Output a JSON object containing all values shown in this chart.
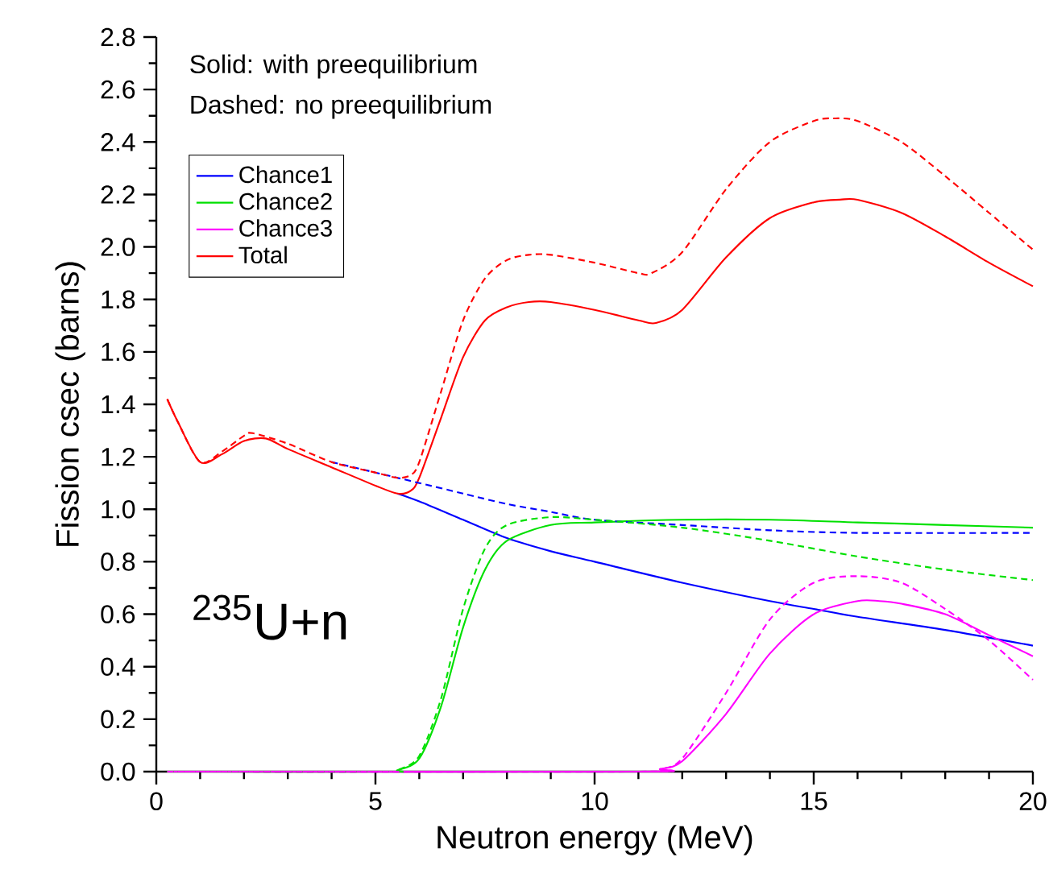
{
  "chart_data": {
    "type": "line",
    "xlabel": "Neutron energy (MeV)",
    "ylabel": "Fission csec (barns)",
    "annotations": [
      "Solid:  with preequilibrium",
      "Dashed:  no preequilibrium",
      "$^{235}$U+n"
    ],
    "xlim": [
      0,
      20
    ],
    "ylim": [
      0,
      2.8
    ],
    "xticks": [
      0,
      5,
      10,
      15,
      20
    ],
    "yticks": [
      {
        "value": 0,
        "label": "0.0"
      },
      {
        "value": 0.2,
        "label": "0.2"
      },
      {
        "value": 0.4,
        "label": "0.4"
      },
      {
        "value": 0.6,
        "label": "0.6"
      },
      {
        "value": 0.8,
        "label": "0.8"
      },
      {
        "value": 1.0,
        "label": "1.0"
      },
      {
        "value": 1.2,
        "label": "1.2"
      },
      {
        "value": 1.4,
        "label": "1.4"
      },
      {
        "value": 1.6,
        "label": "1.6"
      },
      {
        "value": 1.8,
        "label": "1.8"
      },
      {
        "value": 2.0,
        "label": "2.0"
      },
      {
        "value": 2.2,
        "label": "2.2"
      },
      {
        "value": 2.4,
        "label": "2.4"
      },
      {
        "value": 2.6,
        "label": "2.6"
      },
      {
        "value": 2.8,
        "label": "2.8"
      }
    ],
    "grid": false,
    "legend": "top left",
    "marker": "none",
    "series": [
      {
        "name": "Chance1",
        "color": "#0000ff",
        "line_style": "solid",
        "x": [
          5.5,
          6,
          7,
          8,
          9,
          10,
          12,
          14,
          15,
          16,
          18,
          20
        ],
        "values": [
          1.06,
          1.03,
          0.96,
          0.89,
          0.84,
          0.8,
          0.72,
          0.65,
          0.62,
          0.59,
          0.54,
          0.48
        ]
      },
      {
        "name": "Chance2",
        "color": "#00e000",
        "line_style": "solid",
        "x": [
          0.25,
          5.3,
          5.5,
          6,
          6.5,
          7,
          7.5,
          8,
          9,
          10,
          12,
          14,
          16,
          18,
          20
        ],
        "values": [
          0,
          0,
          0.005,
          0.05,
          0.25,
          0.55,
          0.77,
          0.88,
          0.94,
          0.95,
          0.96,
          0.96,
          0.95,
          0.94,
          0.93
        ]
      },
      {
        "name": "Chance3",
        "color": "#ff00ff",
        "line_style": "solid",
        "x": [
          0.25,
          11,
          11.5,
          12,
          13,
          14,
          15,
          16,
          16.5,
          17,
          18,
          19,
          20
        ],
        "values": [
          0,
          0,
          0.01,
          0.04,
          0.22,
          0.45,
          0.6,
          0.65,
          0.65,
          0.64,
          0.6,
          0.52,
          0.44
        ]
      },
      {
        "name": "Total",
        "color": "#ff0000",
        "line_style": "solid",
        "x": [
          0.25,
          0.5,
          1,
          1.5,
          2,
          2.5,
          3,
          4,
          5,
          5.5,
          5.8,
          6,
          6.5,
          7,
          7.5,
          8,
          8.5,
          9,
          10,
          11,
          11.4,
          12,
          13,
          14,
          15,
          15.6,
          16,
          17,
          18,
          19,
          20
        ],
        "values": [
          1.42,
          1.33,
          1.18,
          1.21,
          1.26,
          1.27,
          1.23,
          1.16,
          1.09,
          1.06,
          1.07,
          1.12,
          1.35,
          1.58,
          1.72,
          1.77,
          1.79,
          1.79,
          1.76,
          1.72,
          1.71,
          1.76,
          1.96,
          2.11,
          2.17,
          2.18,
          2.18,
          2.13,
          2.04,
          1.94,
          1.85
        ]
      },
      {
        "color": "#0000ff",
        "line_style": "dashed",
        "x": [
          4,
          5,
          5.5,
          6,
          7,
          8,
          9,
          10,
          12,
          14,
          16,
          20
        ],
        "values": [
          1.18,
          1.14,
          1.12,
          1.1,
          1.06,
          1.02,
          0.99,
          0.96,
          0.94,
          0.92,
          0.91,
          0.91
        ]
      },
      {
        "color": "#00e000",
        "line_style": "dashed",
        "x": [
          0.25,
          5.3,
          5.5,
          6,
          6.5,
          7,
          7.5,
          8,
          9,
          10,
          12,
          14,
          16,
          18,
          20
        ],
        "values": [
          0,
          0,
          0.005,
          0.06,
          0.28,
          0.62,
          0.85,
          0.94,
          0.97,
          0.96,
          0.93,
          0.88,
          0.82,
          0.77,
          0.73
        ]
      },
      {
        "color": "#ff00ff",
        "line_style": "dashed",
        "x": [
          0.25,
          11,
          11.5,
          12,
          13,
          14,
          15,
          16,
          17,
          18,
          19,
          20
        ],
        "values": [
          0,
          0,
          0.01,
          0.05,
          0.3,
          0.58,
          0.72,
          0.745,
          0.72,
          0.62,
          0.5,
          0.35
        ]
      },
      {
        "color": "#ff0000",
        "line_style": "dashed",
        "x": [
          0.25,
          0.5,
          1,
          1.5,
          2,
          2.2,
          3,
          4,
          5,
          5.5,
          5.8,
          6,
          6.5,
          7,
          7.5,
          8,
          8.5,
          9,
          10,
          11,
          11.3,
          12,
          13,
          14,
          15,
          15.5,
          16,
          17,
          18,
          19,
          20
        ],
        "values": [
          1.42,
          1.33,
          1.18,
          1.22,
          1.28,
          1.29,
          1.25,
          1.18,
          1.14,
          1.12,
          1.13,
          1.18,
          1.45,
          1.72,
          1.88,
          1.95,
          1.97,
          1.97,
          1.94,
          1.9,
          1.9,
          1.98,
          2.22,
          2.4,
          2.48,
          2.49,
          2.48,
          2.4,
          2.27,
          2.13,
          1.99
        ]
      }
    ]
  }
}
